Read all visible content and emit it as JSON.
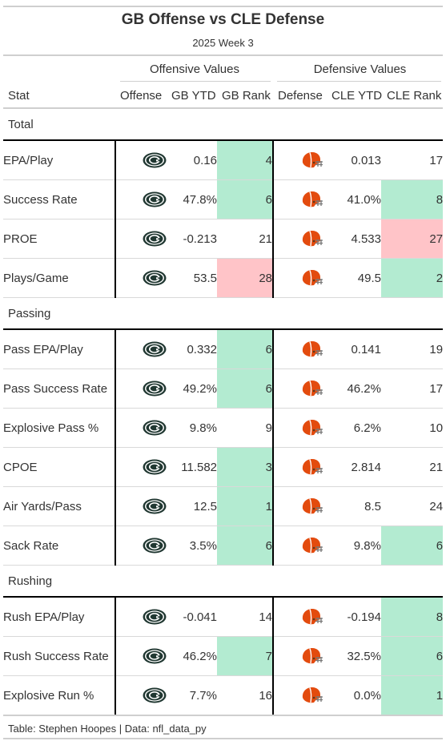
{
  "header": {
    "title": "GB Offense vs CLE Defense",
    "subtitle": "2025 Week 3",
    "spanner_offense": "Offensive Values",
    "spanner_defense": "Defensive Values"
  },
  "columns": {
    "stat": "Stat",
    "offense": "Offense",
    "gb_ytd": "GB YTD",
    "gb_rank": "GB Rank",
    "defense": "Defense",
    "cle_ytd": "CLE YTD",
    "cle_rank": "CLE Rank"
  },
  "icons": {
    "offense_logo": "packers-logo-icon",
    "defense_logo": "browns-helmet-icon",
    "packers_green": "#203731",
    "packers_gold": "#ffb612",
    "browns_orange": "#e34b0e"
  },
  "highlight_colors": {
    "good": "#b3ebd1",
    "bad": "#ffc4c8"
  },
  "groups": [
    {
      "label": "Total",
      "rows": [
        {
          "stat": "EPA/Play",
          "gb_ytd": "0.16",
          "gb_rank": "4",
          "gb_class": "good",
          "cle_ytd": "0.013",
          "cle_rank": "17",
          "cle_class": ""
        },
        {
          "stat": "Success Rate",
          "gb_ytd": "47.8%",
          "gb_rank": "6",
          "gb_class": "good",
          "cle_ytd": "41.0%",
          "cle_rank": "8",
          "cle_class": "good"
        },
        {
          "stat": "PROE",
          "gb_ytd": "-0.213",
          "gb_rank": "21",
          "gb_class": "",
          "cle_ytd": "4.533",
          "cle_rank": "27",
          "cle_class": "bad"
        },
        {
          "stat": "Plays/Game",
          "gb_ytd": "53.5",
          "gb_rank": "28",
          "gb_class": "bad",
          "cle_ytd": "49.5",
          "cle_rank": "2",
          "cle_class": "good"
        }
      ]
    },
    {
      "label": "Passing",
      "rows": [
        {
          "stat": "Pass EPA/Play",
          "gb_ytd": "0.332",
          "gb_rank": "6",
          "gb_class": "good",
          "cle_ytd": "0.141",
          "cle_rank": "19",
          "cle_class": ""
        },
        {
          "stat": "Pass Success Rate",
          "gb_ytd": "49.2%",
          "gb_rank": "6",
          "gb_class": "good",
          "cle_ytd": "46.2%",
          "cle_rank": "17",
          "cle_class": ""
        },
        {
          "stat": "Explosive Pass %",
          "gb_ytd": "9.8%",
          "gb_rank": "9",
          "gb_class": "",
          "cle_ytd": "6.2%",
          "cle_rank": "10",
          "cle_class": ""
        },
        {
          "stat": "CPOE",
          "gb_ytd": "11.582",
          "gb_rank": "3",
          "gb_class": "good",
          "cle_ytd": "2.814",
          "cle_rank": "21",
          "cle_class": ""
        },
        {
          "stat": "Air Yards/Pass",
          "gb_ytd": "12.5",
          "gb_rank": "1",
          "gb_class": "good",
          "cle_ytd": "8.5",
          "cle_rank": "24",
          "cle_class": ""
        },
        {
          "stat": "Sack Rate",
          "gb_ytd": "3.5%",
          "gb_rank": "6",
          "gb_class": "good",
          "cle_ytd": "9.8%",
          "cle_rank": "6",
          "cle_class": "good"
        }
      ]
    },
    {
      "label": "Rushing",
      "rows": [
        {
          "stat": "Rush EPA/Play",
          "gb_ytd": "-0.041",
          "gb_rank": "14",
          "gb_class": "",
          "cle_ytd": "-0.194",
          "cle_rank": "8",
          "cle_class": "good"
        },
        {
          "stat": "Rush Success Rate",
          "gb_ytd": "46.2%",
          "gb_rank": "7",
          "gb_class": "good",
          "cle_ytd": "32.5%",
          "cle_rank": "6",
          "cle_class": "good"
        },
        {
          "stat": "Explosive Run %",
          "gb_ytd": "7.7%",
          "gb_rank": "16",
          "gb_class": "",
          "cle_ytd": "0.0%",
          "cle_rank": "1",
          "cle_class": "good"
        }
      ]
    }
  ],
  "footer": {
    "source": "Table: Stephen Hoopes | Data: nfl_data_py"
  }
}
